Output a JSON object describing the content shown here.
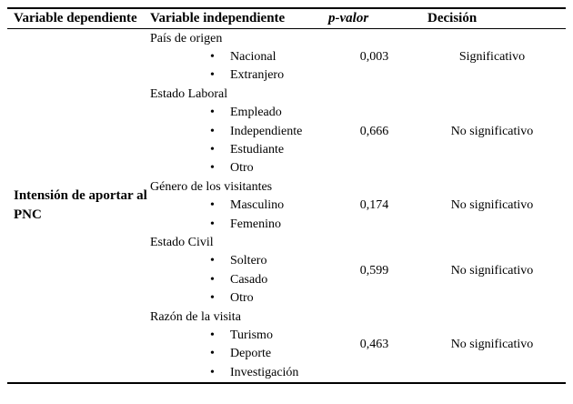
{
  "table": {
    "headers": {
      "dependent": "Variable dependiente",
      "independent": "Variable independiente",
      "pvalue": "p-valor",
      "decision": "Decisión"
    },
    "dependent_label": "Intensión de aportar al PNC",
    "groups": [
      {
        "title": "País de origen",
        "items": [
          "Nacional",
          "Extranjero"
        ],
        "p": "0,003",
        "decision": "Significativo"
      },
      {
        "title": "Estado Laboral",
        "items": [
          "Empleado",
          "Independiente",
          "Estudiante",
          "Otro"
        ],
        "p": "0,666",
        "decision": "No significativo"
      },
      {
        "title": "Género de los visitantes",
        "items": [
          "Masculino",
          "Femenino"
        ],
        "p": "0,174",
        "decision": "No significativo"
      },
      {
        "title": "Estado Civil",
        "items": [
          "Soltero",
          "Casado",
          "Otro"
        ],
        "p": "0,599",
        "decision": "No significativo"
      },
      {
        "title": "Razón de la visita",
        "items": [
          "Turismo",
          "Deporte",
          "Investigación"
        ],
        "p": "0,463",
        "decision": "No significativo"
      }
    ]
  }
}
